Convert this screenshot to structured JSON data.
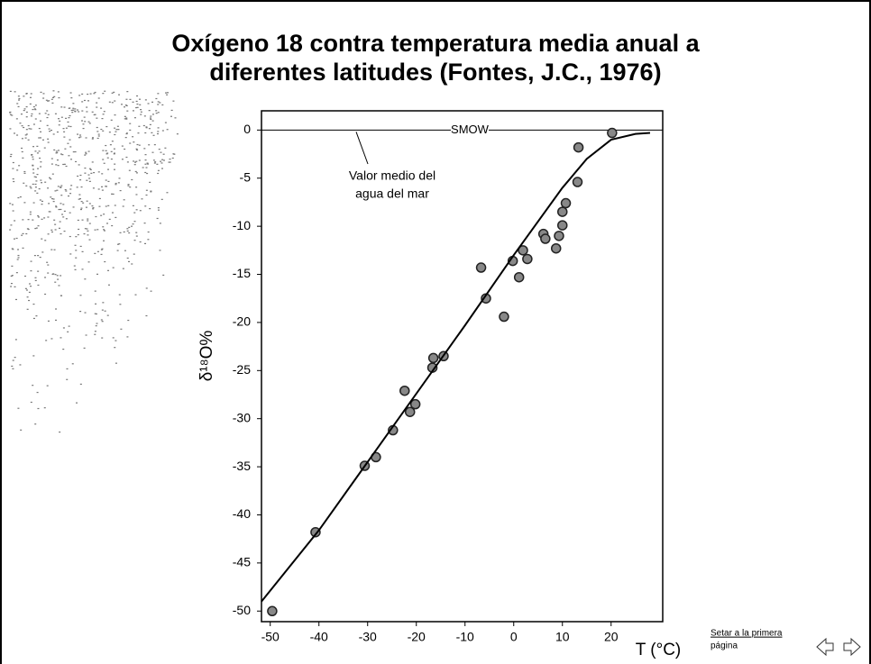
{
  "chart_data": {
    "type": "scatter",
    "title": [
      "Oxígeno 18 contra temperatura media anual a",
      "diferentes latitudes (Fontes, J.C., 1976)"
    ],
    "xlabel": "T (°C)",
    "ylabel": "δ¹⁸O%",
    "xlim": [
      -51.8,
      30.6
    ],
    "ylim": [
      -51.1,
      2.0
    ],
    "xticks": [
      -50,
      -40,
      -30,
      -20,
      -10,
      0,
      10,
      20
    ],
    "yticks": [
      0,
      -5,
      -10,
      -15,
      -20,
      -25,
      -30,
      -35,
      -40,
      -45,
      -50
    ],
    "reference_line": {
      "value": 0,
      "label": "SMOW"
    },
    "annotation": [
      "Valor medio del",
      "agua del mar"
    ],
    "series": [
      {
        "mode": "markers",
        "color": "#888888",
        "x": [
          -49.6,
          -40.7,
          -30.6,
          -28.3,
          -24.8,
          -22.4,
          -21.3,
          -20.2,
          -16.7,
          -16.5,
          -14.4,
          -6.7,
          -5.7,
          -2.0,
          -0.2,
          1.1,
          1.9,
          2.8,
          6.1,
          6.5,
          8.7,
          9.3,
          10.0,
          10.7,
          10.0,
          13.1,
          13.3,
          20.2
        ],
        "values": [
          -50,
          -41.8,
          -34.9,
          -34,
          -31.2,
          -27.1,
          -29.3,
          -28.5,
          -24.7,
          -23.7,
          -23.5,
          -14.3,
          -17.5,
          -19.4,
          -13.6,
          -15.3,
          -12.5,
          -13.4,
          -10.8,
          -11.3,
          -12.3,
          -11.0,
          -9.9,
          -7.6,
          -8.5,
          -5.4,
          -1.8,
          -0.3
        ]
      },
      {
        "mode": "line",
        "color": "#000000",
        "x": [
          -51.8,
          -40,
          -30,
          -20,
          -10,
          0,
          10,
          15,
          20,
          25,
          28
        ],
        "values": [
          -49,
          -41.6,
          -34.5,
          -27.4,
          -20.3,
          -13,
          -6,
          -3,
          -1,
          -0.4,
          -0.3
        ]
      }
    ]
  },
  "nav_hint": [
    "Setar a la primera",
    "página"
  ]
}
